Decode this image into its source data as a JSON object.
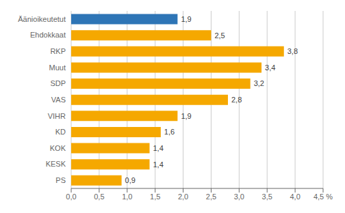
{
  "chart_data": {
    "type": "bar",
    "orientation": "horizontal",
    "categories": [
      "Äänioikeutetut",
      "Ehdokkaat",
      "RKP",
      "Muut",
      "SDP",
      "VAS",
      "VIHR",
      "KD",
      "KOK",
      "KESK",
      "PS"
    ],
    "values": [
      1.9,
      2.5,
      3.8,
      3.4,
      3.2,
      2.8,
      1.9,
      1.6,
      1.4,
      1.4,
      0.9
    ],
    "value_labels": [
      "1,9",
      "2,5",
      "3,8",
      "3,4",
      "3,2",
      "2,8",
      "1,9",
      "1,6",
      "1,4",
      "1,4",
      "0,9"
    ],
    "data_labels": true,
    "colors": [
      "#2E75B6",
      "#F5A800",
      "#F5A800",
      "#F5A800",
      "#F5A800",
      "#F5A800",
      "#F5A800",
      "#F5A800",
      "#F5A800",
      "#F5A800",
      "#F5A800"
    ],
    "xlim": [
      0,
      4.5
    ],
    "xticks": [
      {
        "value": 0.0,
        "label": "0,0"
      },
      {
        "value": 0.5,
        "label": "0,5"
      },
      {
        "value": 1.0,
        "label": "1,0"
      },
      {
        "value": 1.5,
        "label": "1,5"
      },
      {
        "value": 2.0,
        "label": "2,0"
      },
      {
        "value": 2.5,
        "label": "2,5"
      },
      {
        "value": 3.0,
        "label": "3,0"
      },
      {
        "value": 3.5,
        "label": "3,5"
      },
      {
        "value": 4.0,
        "label": "4,0"
      },
      {
        "value": 4.5,
        "label": "4,5 %"
      }
    ],
    "grid": true
  }
}
